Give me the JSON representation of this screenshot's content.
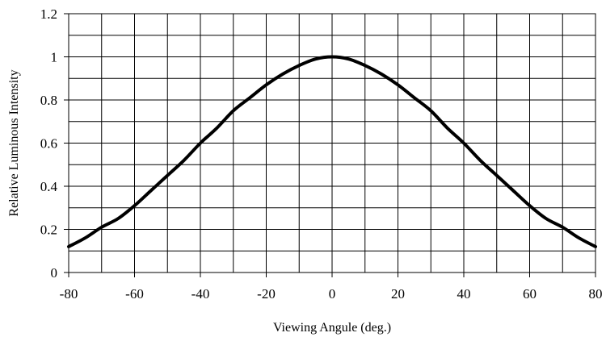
{
  "chart_data": {
    "type": "line",
    "title": "",
    "xlabel": "Viewing Angule (deg.)",
    "ylabel": "Relative Luminous Intensity",
    "xlim": [
      -80,
      80
    ],
    "ylim": [
      0,
      1.2
    ],
    "x_ticks": [
      -80,
      -60,
      -40,
      -20,
      0,
      20,
      40,
      60,
      80
    ],
    "y_ticks": [
      0,
      0.2,
      0.4,
      0.6,
      0.8,
      1,
      1.2
    ],
    "x_tick_labels": [
      "-80",
      "-60",
      "-40",
      "-20",
      "0",
      "20",
      "40",
      "60",
      "80"
    ],
    "y_tick_labels": [
      "0",
      "0.2",
      "0.4",
      "0.6",
      "0.8",
      "1",
      "1.2"
    ],
    "grid": true,
    "grid_x_step": 10,
    "grid_y_step": 0.1,
    "legend": "none",
    "line_color": "#000000",
    "series": [
      {
        "x": [
          -80,
          -75,
          -70,
          -65,
          -60,
          -55,
          -50,
          -45,
          -40,
          -35,
          -30,
          -25,
          -20,
          -15,
          -10,
          -5,
          0,
          5,
          10,
          15,
          20,
          25,
          30,
          35,
          40,
          45,
          50,
          55,
          60,
          65,
          70,
          75,
          80
        ],
        "values": [
          0.12,
          0.16,
          0.21,
          0.25,
          0.31,
          0.38,
          0.45,
          0.52,
          0.6,
          0.67,
          0.75,
          0.81,
          0.87,
          0.92,
          0.96,
          0.99,
          1.0,
          0.99,
          0.96,
          0.92,
          0.87,
          0.81,
          0.75,
          0.67,
          0.6,
          0.52,
          0.45,
          0.38,
          0.31,
          0.25,
          0.21,
          0.16,
          0.12
        ]
      }
    ]
  }
}
